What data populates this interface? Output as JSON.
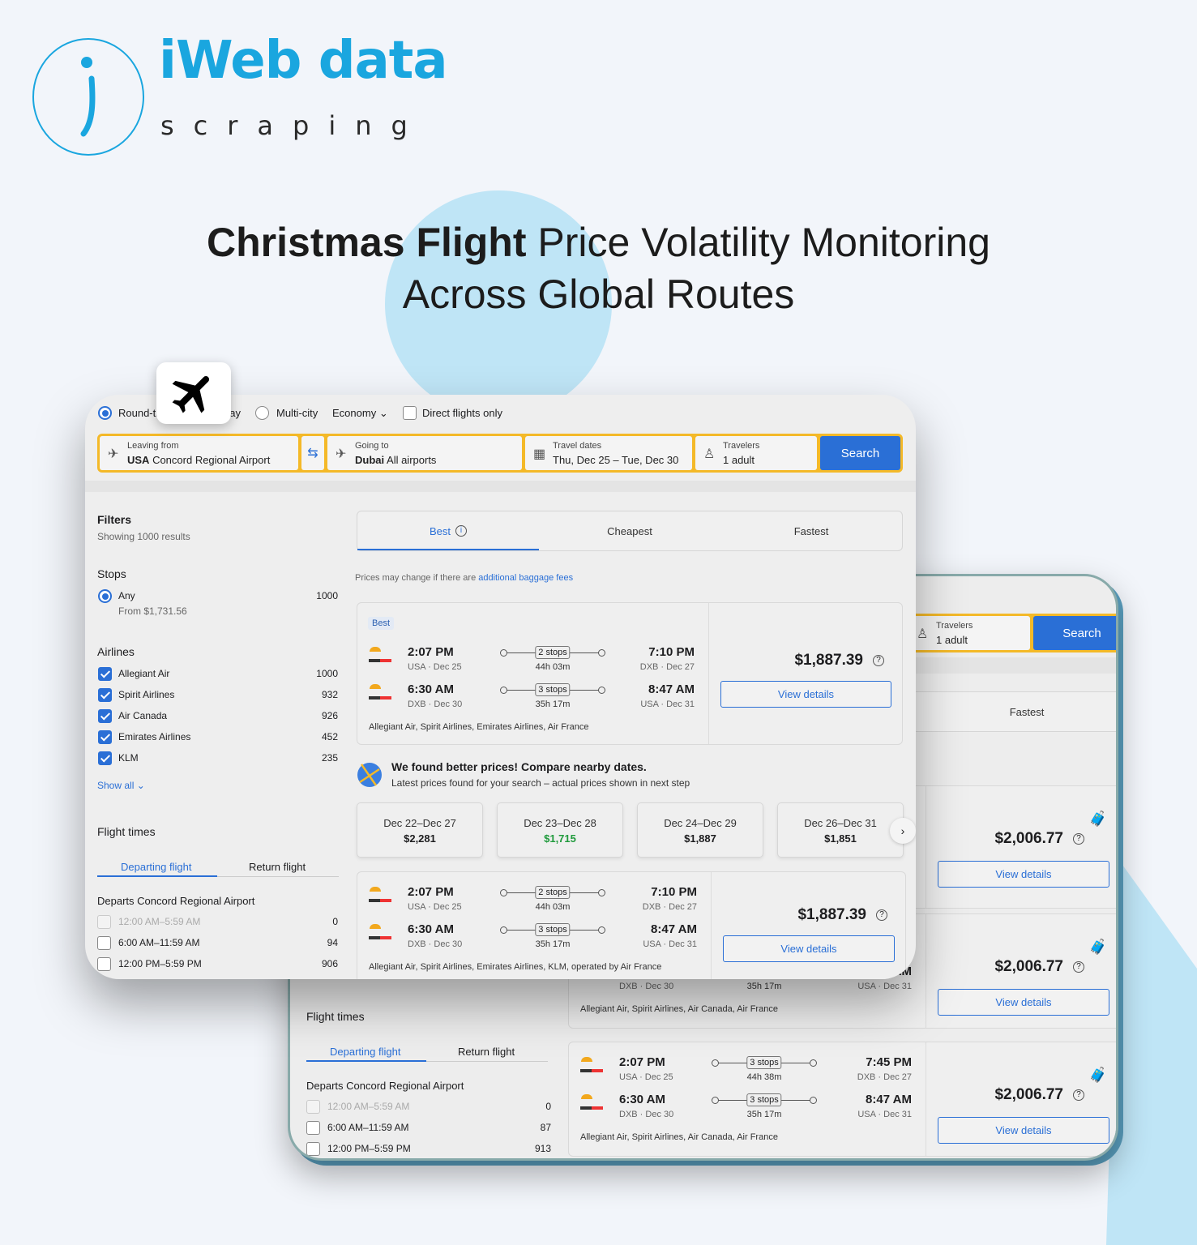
{
  "brand": {
    "name_main": "iWeb data",
    "name_sub": "scraping",
    "accent": "#1aa6df"
  },
  "headline": {
    "bold": "Christmas Flight",
    "regular": " Price Volatility Monitoring",
    "line2": "Across Global Routes"
  },
  "colors": {
    "primary": "#2a6fd6",
    "search_border": "#f4b928",
    "deal_green": "#1f9a3c",
    "bg_circle": "#bfe5f6"
  },
  "front": {
    "trip_types": [
      {
        "label": "Round-trip",
        "selected": true
      },
      {
        "label": "One-way",
        "selected": false
      },
      {
        "label": "Multi-city",
        "selected": false
      }
    ],
    "cabin": "Economy",
    "direct_only": {
      "label": "Direct flights only",
      "checked": false
    },
    "search": {
      "from": {
        "label": "Leaving from",
        "bold": "USA",
        "value": " Concord Regional Airport"
      },
      "to": {
        "label": "Going to",
        "bold": "Dubai",
        "value": " All airports"
      },
      "dates": {
        "label": "Travel dates",
        "value": "Thu, Dec 25 – Tue, Dec 30"
      },
      "travelers": {
        "label": "Travelers",
        "value": "1 adult"
      },
      "button": "Search"
    },
    "filters": {
      "title": "Filters",
      "count": "Showing 1000 results",
      "stops_title": "Stops",
      "stop_any": "Any",
      "stop_any_count": "1000",
      "stop_any_from": "From $1,731.56",
      "airlines_title": "Airlines",
      "airlines": [
        {
          "name": "Allegiant Air",
          "count": "1000"
        },
        {
          "name": "Spirit Airlines",
          "count": "932"
        },
        {
          "name": "Air Canada",
          "count": "926"
        },
        {
          "name": "Emirates Airlines",
          "count": "452"
        },
        {
          "name": "KLM",
          "count": "235"
        }
      ],
      "show_all": "Show all",
      "flight_times_title": "Flight times",
      "tabs": [
        "Departing flight",
        "Return flight"
      ],
      "departs": "Departs Concord Regional Airport",
      "times": [
        {
          "label": "12:00 AM–5:59 AM",
          "count": "0",
          "disabled": true
        },
        {
          "label": "6:00 AM–11:59 AM",
          "count": "94"
        },
        {
          "label": "12:00 PM–5:59 PM",
          "count": "906"
        }
      ]
    },
    "sort_tabs": [
      "Best",
      "Cheapest",
      "Fastest"
    ],
    "notice": "Prices may change if there are ",
    "notice_link": "additional baggage fees",
    "cards": [
      {
        "badge": "Best",
        "price": "$1,887.39",
        "button": "View details",
        "legs": [
          {
            "dep": "2:07 PM",
            "dep_sub": "USA · Dec 25",
            "stops": "2 stops",
            "dur": "44h 03m",
            "arr": "7:10 PM",
            "arr_sub": "DXB · Dec 27"
          },
          {
            "dep": "6:30 AM",
            "dep_sub": "DXB · Dec 30",
            "stops": "3 stops",
            "dur": "35h 17m",
            "arr": "8:47 AM",
            "arr_sub": "USA · Dec 31"
          }
        ],
        "airlines": "Allegiant Air, Spirit Airlines, Emirates Airlines, Air France"
      },
      {
        "price": "$1,887.39",
        "button": "View details",
        "legs": [
          {
            "dep": "2:07 PM",
            "dep_sub": "USA · Dec 25",
            "stops": "2 stops",
            "dur": "44h 03m",
            "arr": "7:10 PM",
            "arr_sub": "DXB · Dec 27"
          },
          {
            "dep": "6:30 AM",
            "dep_sub": "DXB · Dec 30",
            "stops": "3 stops",
            "dur": "35h 17m",
            "arr": "8:47 AM",
            "arr_sub": "USA · Dec 31"
          }
        ],
        "airlines": "Allegiant Air, Spirit Airlines, Emirates Airlines, KLM, operated by Air France"
      }
    ],
    "better": {
      "title": "We found better prices! Compare nearby dates.",
      "sub": "Latest prices found for your search – actual prices shown in next step"
    },
    "nearby": [
      {
        "dates": "Dec 22–Dec 27",
        "price": "$2,281"
      },
      {
        "dates": "Dec 23–Dec 28",
        "price": "$1,715",
        "best": true
      },
      {
        "dates": "Dec 24–Dec 29",
        "price": "$1,887"
      },
      {
        "dates": "Dec 26–Dec 31",
        "price": "$1,851"
      }
    ]
  },
  "back": {
    "travelers": {
      "label": "Travelers",
      "value": "1 adult"
    },
    "search_button": "Search",
    "tab": "Fastest",
    "filters": {
      "flight_times_title": "Flight times",
      "tabs": [
        "Departing flight",
        "Return flight"
      ],
      "departs": "Departs Concord Regional Airport",
      "times": [
        {
          "label": "12:00 AM–5:59 AM",
          "count": "0",
          "disabled": true
        },
        {
          "label": "6:00 AM–11:59 AM",
          "count": "87"
        },
        {
          "label": "12:00 PM–5:59 PM",
          "count": "913"
        }
      ]
    },
    "cards": [
      {
        "price": "$2,006.77",
        "button": "View details",
        "legs": []
      },
      {
        "price": "$2,006.77",
        "button": "View details",
        "legs": [
          {},
          {
            "dep_sub": "DXB · Dec 30",
            "dur": "35h 17m",
            "arr": "8:47 AM",
            "arr_sub": "USA · Dec 31"
          }
        ],
        "airlines": "Allegiant Air, Spirit Airlines, Air Canada, Air France"
      },
      {
        "price": "$2,006.77",
        "button": "View details",
        "legs": [
          {
            "dep": "2:07 PM",
            "dep_sub": "USA · Dec 25",
            "stops": "3 stops",
            "dur": "44h 38m",
            "arr": "7:45 PM",
            "arr_sub": "DXB · Dec 27"
          },
          {
            "dep": "6:30 AM",
            "dep_sub": "DXB · Dec 30",
            "stops": "3 stops",
            "dur": "35h 17m",
            "arr": "8:47 AM",
            "arr_sub": "USA · Dec 31"
          }
        ],
        "airlines": "Allegiant Air, Spirit Airlines, Air Canada, Air France"
      }
    ]
  }
}
